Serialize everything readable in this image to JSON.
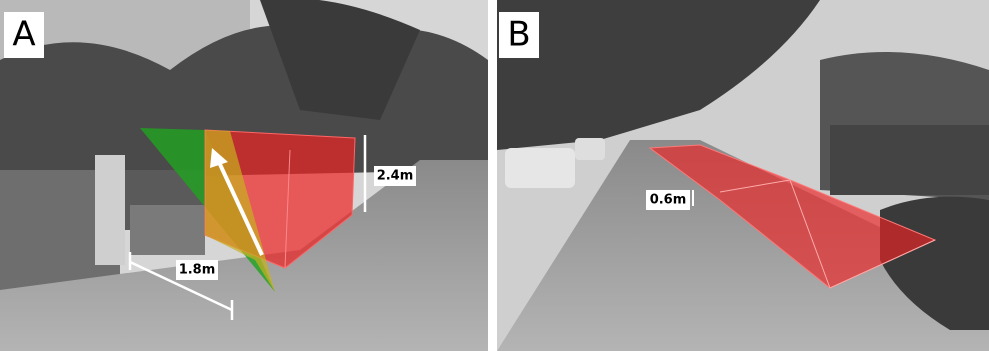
{
  "panels": [
    {
      "label": "A",
      "measurements": [
        "2.4m",
        "1.8m"
      ]
    },
    {
      "label": "B",
      "measurements": [
        "0.6m"
      ]
    }
  ]
}
